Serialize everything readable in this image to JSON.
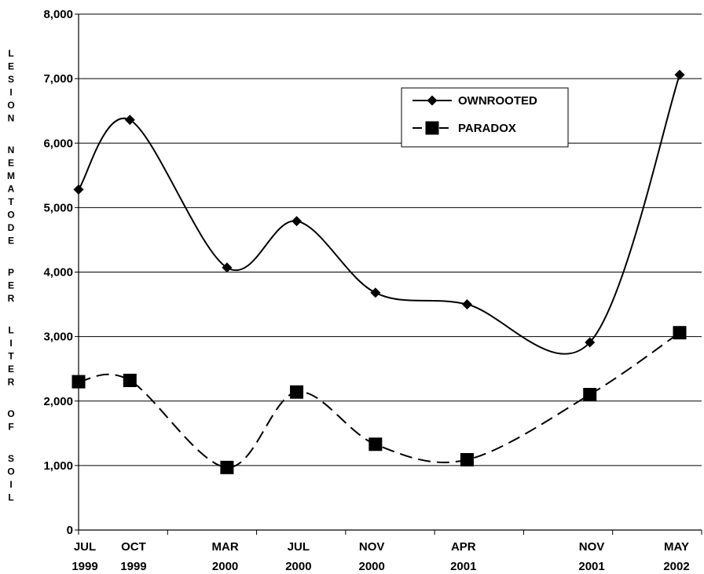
{
  "chart_data": {
    "type": "line",
    "ylabel": "LESION NEMATODE PER LITER OF SOIL",
    "ylim": [
      0,
      8000
    ],
    "yticks": [
      0,
      1000,
      2000,
      3000,
      4000,
      5000,
      6000,
      7000,
      8000
    ],
    "ytick_labels": [
      "0",
      "1,000",
      "2,000",
      "3,000",
      "4,000",
      "5,000",
      "6,000",
      "7,000",
      "8,000"
    ],
    "x_labels": [
      {
        "line1": "JUL",
        "line2": "1999",
        "month": 0.0
      },
      {
        "line1": "OCT",
        "line2": "1999",
        "month": 3.0
      },
      {
        "line1": "MAR",
        "line2": "2000",
        "month": 8.0
      },
      {
        "line1": "JUL",
        "line2": "2000",
        "month": 12.0
      },
      {
        "line1": "NOV",
        "line2": "2000",
        "month": 16.0
      },
      {
        "line1": "APR",
        "line2": "2001",
        "month": 21.0
      },
      {
        "line1": "NOV",
        "line2": "2001",
        "month": 28.0
      },
      {
        "line1": "MAY",
        "line2": "2002",
        "month": 34.0
      }
    ],
    "xlim_month": [
      0,
      34
    ],
    "grid": true,
    "legend_position": "top-right",
    "series": [
      {
        "name": "OWNROOTED",
        "marker": "diamond",
        "dash": "solid",
        "points": [
          {
            "date": "JUL 1999",
            "month": 0.0,
            "value": 5280
          },
          {
            "date": "OCT 1999",
            "month": 2.8,
            "value": 6360
          },
          {
            "date": "MAR 2000",
            "month": 8.1,
            "value": 4070
          },
          {
            "date": "JUL 2000",
            "month": 11.9,
            "value": 4790
          },
          {
            "date": "NOV 2000",
            "month": 16.2,
            "value": 3680
          },
          {
            "date": "APR 2001",
            "month": 21.2,
            "value": 3500
          },
          {
            "date": "NOV 2001",
            "month": 27.9,
            "value": 2910
          },
          {
            "date": "MAY 2002",
            "month": 32.8,
            "value": 7060
          }
        ]
      },
      {
        "name": "PARADOX",
        "marker": "square",
        "dash": "dashed",
        "points": [
          {
            "date": "JUL 1999",
            "month": 0.0,
            "value": 2300
          },
          {
            "date": "OCT 1999",
            "month": 2.8,
            "value": 2320
          },
          {
            "date": "MAR 2000",
            "month": 8.1,
            "value": 970
          },
          {
            "date": "JUL 2000",
            "month": 11.9,
            "value": 2140
          },
          {
            "date": "NOV 2000",
            "month": 16.2,
            "value": 1330
          },
          {
            "date": "APR 2001",
            "month": 21.2,
            "value": 1090
          },
          {
            "date": "NOV 2001",
            "month": 27.9,
            "value": 2100
          },
          {
            "date": "MAY 2002",
            "month": 32.8,
            "value": 3060
          }
        ]
      }
    ]
  }
}
